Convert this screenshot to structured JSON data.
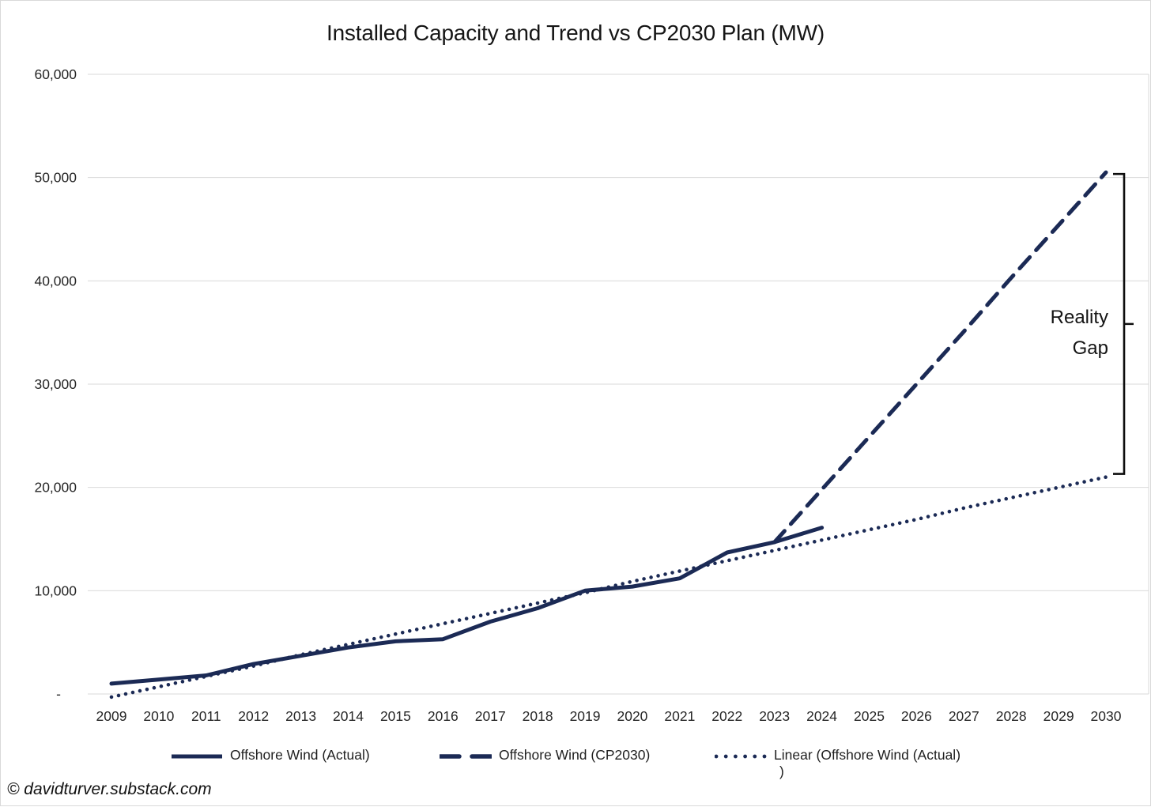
{
  "chart_data": {
    "type": "line",
    "title": "Installed Capacity and Trend vs CP2030 Plan (MW)",
    "x_categories": [
      2009,
      2010,
      2011,
      2012,
      2013,
      2014,
      2015,
      2016,
      2017,
      2018,
      2019,
      2020,
      2021,
      2022,
      2023,
      2024,
      2025,
      2026,
      2027,
      2028,
      2029,
      2030
    ],
    "y_axis": {
      "min": 0,
      "max": 60000,
      "tick_interval": 10000,
      "tick_labels": [
        "-",
        "10,000",
        "20,000",
        "30,000",
        "40,000",
        "50,000",
        "60,000"
      ]
    },
    "grid": "horizontal",
    "gridline_color": "#d9d9d9",
    "legend_position": "bottom",
    "series": [
      {
        "name": "Offshore Wind (Actual)",
        "style": "solid",
        "color": "#1B2A55",
        "x": [
          2009,
          2010,
          2011,
          2012,
          2013,
          2014,
          2015,
          2016,
          2017,
          2018,
          2019,
          2020,
          2021,
          2022,
          2023,
          2024
        ],
        "values": [
          1000,
          1400,
          1800,
          2900,
          3700,
          4500,
          5100,
          5300,
          7000,
          8300,
          10000,
          10400,
          11200,
          13700,
          14700,
          16100
        ],
        "legend_lines": [
          "Offshore Wind (Actual)"
        ]
      },
      {
        "name": "Offshore Wind (CP2030)",
        "style": "dashed",
        "color": "#1B2A55",
        "x": [
          2023,
          2024,
          2025,
          2026,
          2027,
          2028,
          2029,
          2030
        ],
        "values": [
          14700,
          19800,
          24900,
          30000,
          35100,
          40300,
          45400,
          50500
        ],
        "legend_lines": [
          "Offshore Wind (CP2030)"
        ]
      },
      {
        "name": "Linear (Offshore Wind (Actual))",
        "style": "dotted",
        "color": "#1B2A55",
        "x": [
          2009,
          2010,
          2011,
          2012,
          2013,
          2014,
          2015,
          2016,
          2017,
          2018,
          2019,
          2020,
          2021,
          2022,
          2023,
          2024,
          2025,
          2026,
          2027,
          2028,
          2029,
          2030
        ],
        "values": [
          -300,
          700,
          1700,
          2700,
          3800,
          4800,
          5800,
          6800,
          7800,
          8800,
          9800,
          10900,
          11900,
          12900,
          13900,
          14900,
          15900,
          16900,
          18000,
          19000,
          20000,
          21000
        ],
        "legend_lines": [
          "Linear (Offshore Wind (Actual)",
          ")"
        ]
      }
    ],
    "annotation": {
      "label_lines": [
        "Reality",
        "Gap"
      ],
      "bracket": {
        "from_value": 21000,
        "to_value": 50500,
        "at_x_category": 2030
      },
      "color": "#0d0d0d"
    }
  },
  "footer": {
    "copyright": "© davidturver.substack.com"
  }
}
